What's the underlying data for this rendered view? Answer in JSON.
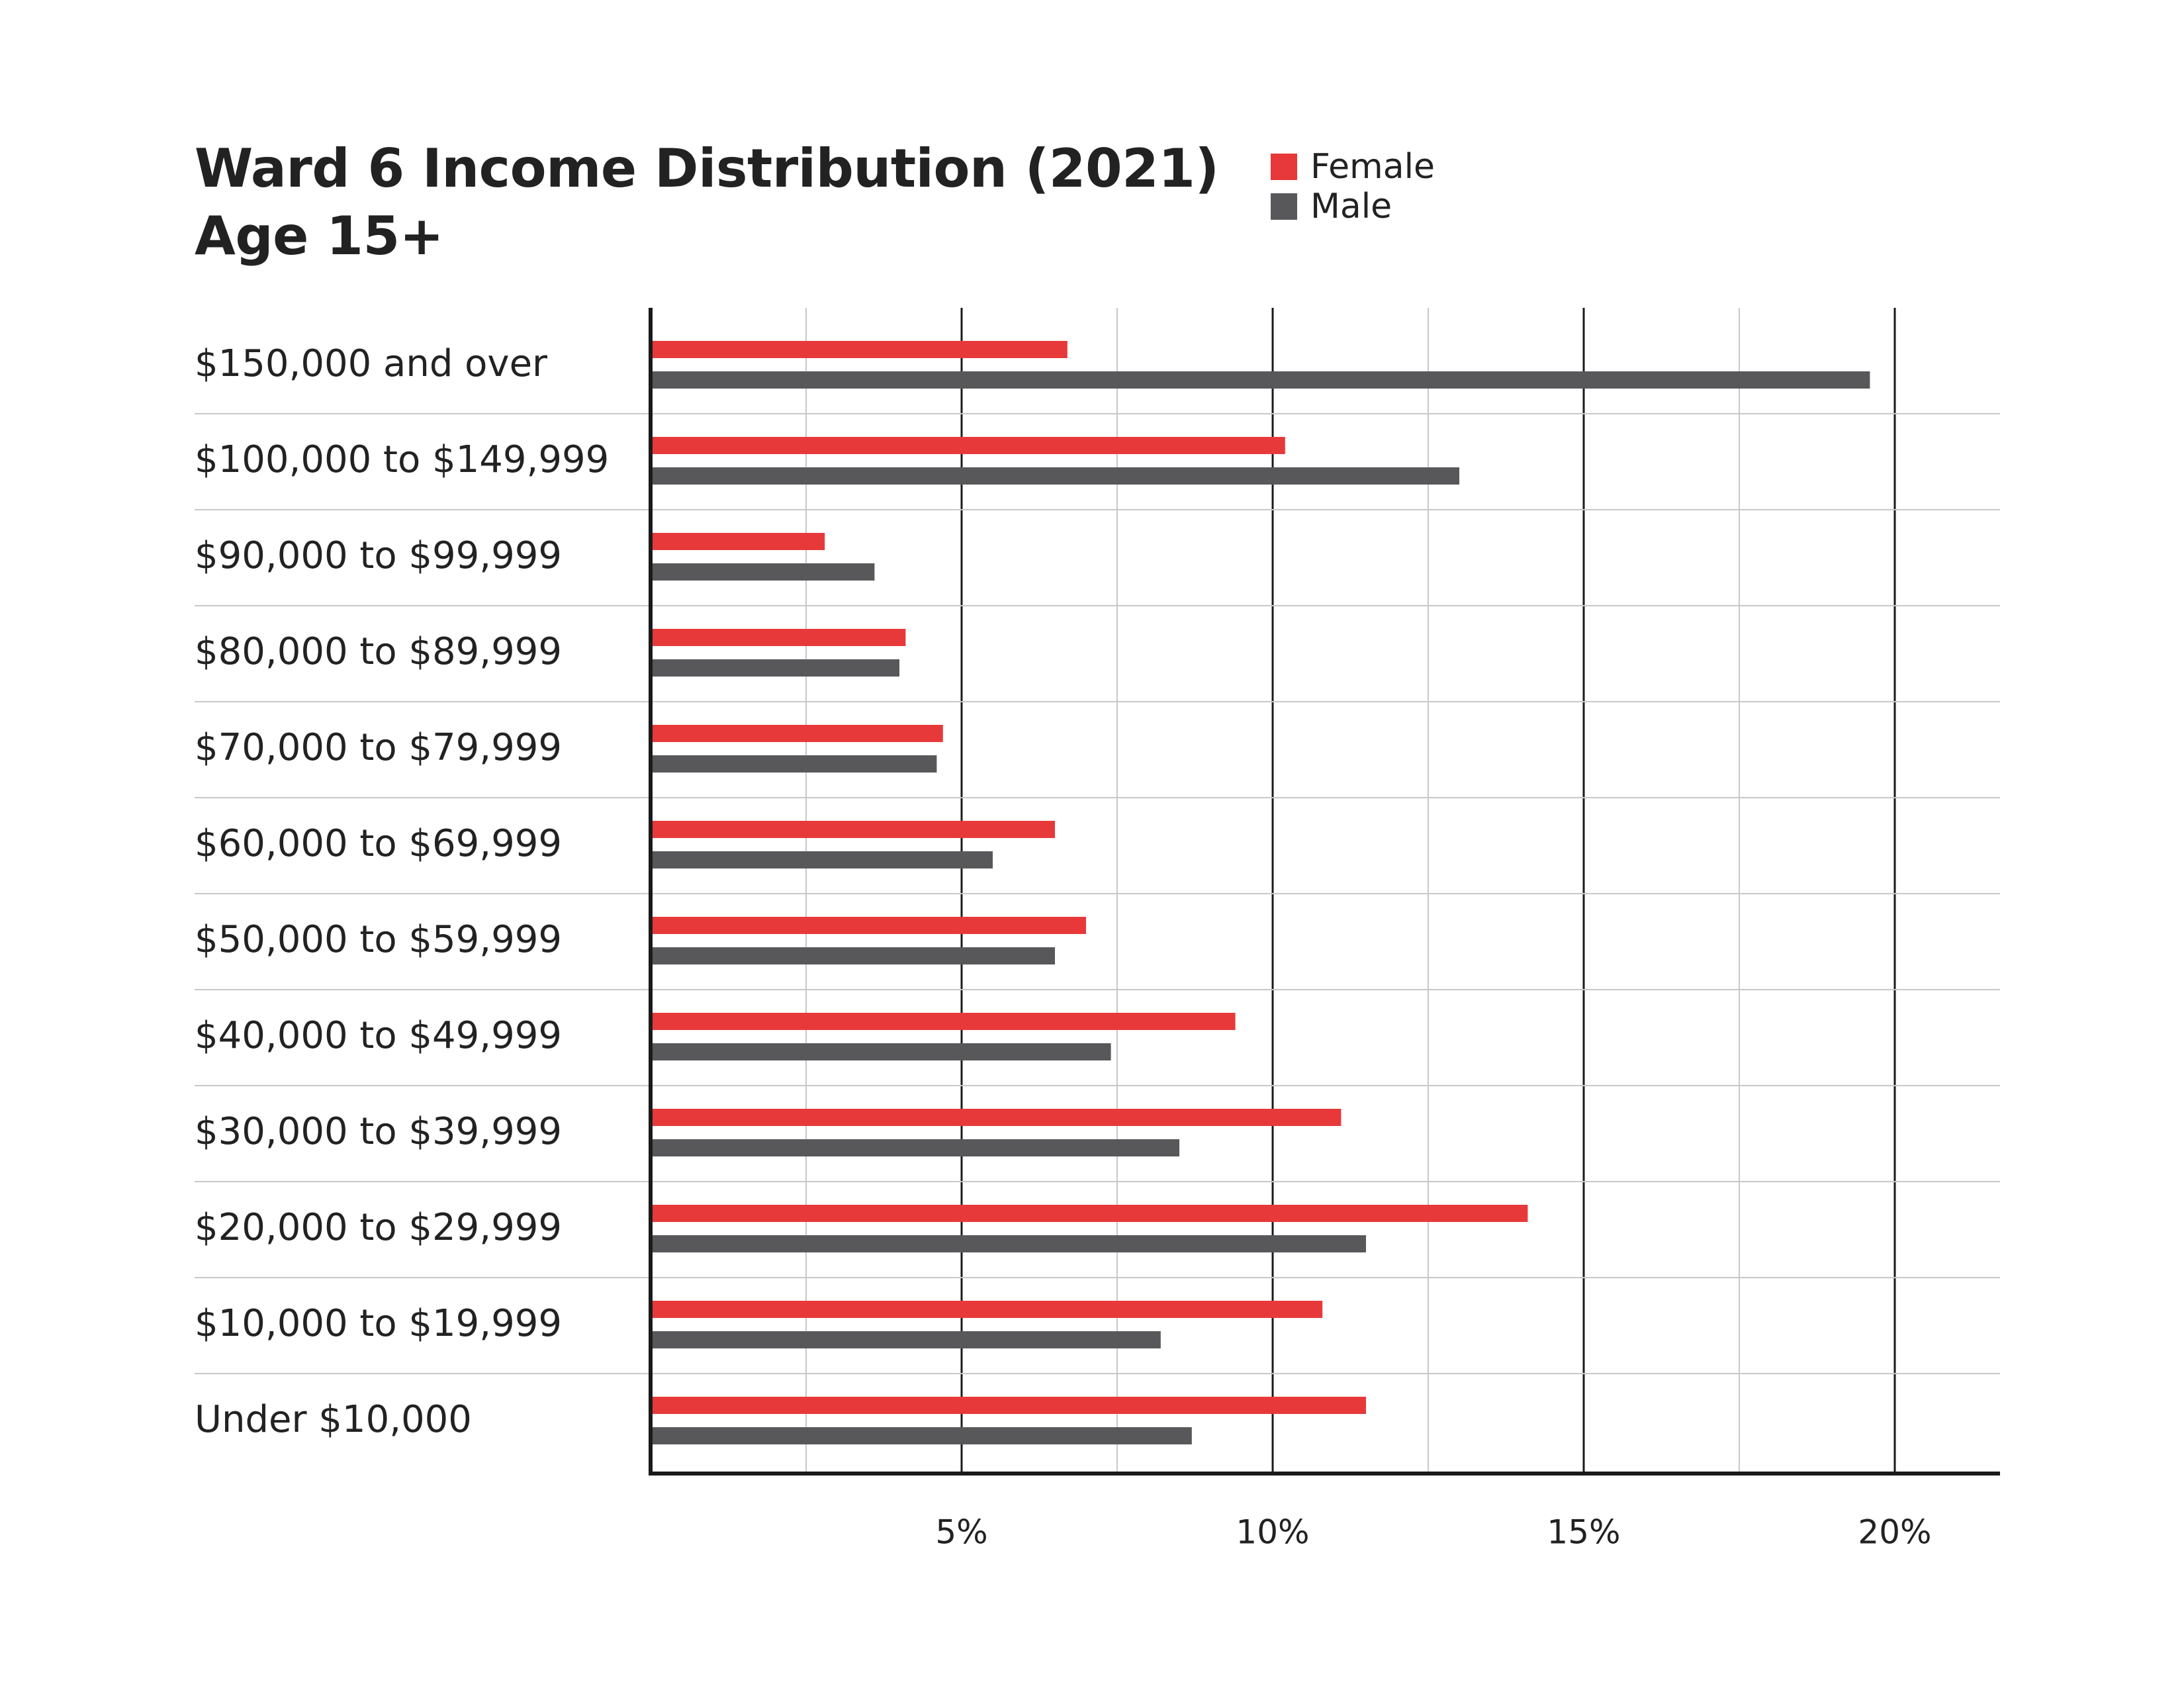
{
  "chart_data": {
    "type": "bar",
    "orientation": "horizontal",
    "title": "Ward 6 Income Distribution (2021)",
    "subtitle": "Age 15+",
    "xlabel": "",
    "ylabel": "",
    "xlim": [
      0,
      21.7
    ],
    "x_ticks": [
      5,
      10,
      15,
      20
    ],
    "x_tick_labels": [
      "5%",
      "10%",
      "15%",
      "20%"
    ],
    "grid": true,
    "legend_position": "top-right",
    "categories": [
      "$150,000 and over",
      "$100,000 to $149,999",
      "$90,000 to $99,999",
      "$80,000 to $89,999",
      "$70,000 to $79,999",
      "$60,000 to $69,999",
      "$50,000 to $59,999",
      "$40,000 to $49,999",
      "$30,000 to $39,999",
      "$20,000 to $29,999",
      "$10,000 to $19,999",
      "Under $10,000"
    ],
    "series": [
      {
        "name": "Female",
        "color": "#e8393a",
        "values": [
          6.7,
          10.2,
          2.8,
          4.1,
          4.7,
          6.5,
          7.0,
          9.4,
          11.1,
          14.1,
          10.8,
          11.5
        ]
      },
      {
        "name": "Male",
        "color": "#58585a",
        "values": [
          19.6,
          13.0,
          3.6,
          4.0,
          4.6,
          5.5,
          6.5,
          7.4,
          8.5,
          11.5,
          8.2,
          8.7
        ]
      }
    ]
  },
  "colors": {
    "axis": "#1a1a1a",
    "major_grid": "#1a1a1a",
    "minor_grid": "#c8c8c8",
    "row_separator": "#c8c8c8"
  }
}
